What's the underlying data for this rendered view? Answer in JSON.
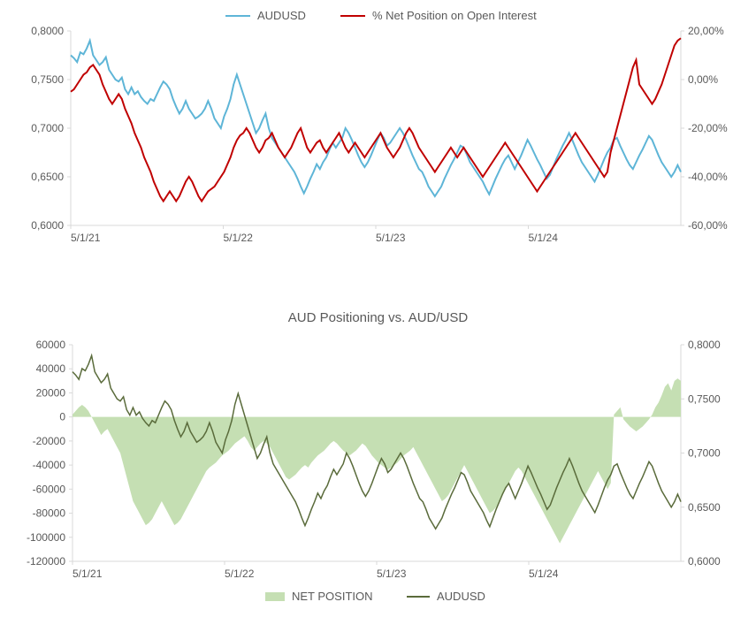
{
  "chart1": {
    "type": "line-dual-axis",
    "background_color": "#ffffff",
    "grid_color": "#d9d9d9",
    "axis_text_color": "#595959",
    "axis_fontsize": 12,
    "legend_fontsize": 13,
    "left_axis": {
      "min": 0.6,
      "max": 0.8,
      "step": 0.05,
      "ticks": [
        "0,6000",
        "0,6500",
        "0,7000",
        "0,7500",
        "0,8000"
      ]
    },
    "right_axis": {
      "min": -60,
      "max": 20,
      "step": 20,
      "ticks": [
        "-60,00%",
        "-40,00%",
        "-20,00%",
        "0,00%",
        "20,00%"
      ]
    },
    "x_axis": {
      "labels": [
        "5/1/21",
        "5/1/22",
        "5/1/23",
        "5/1/24"
      ]
    },
    "legend": [
      {
        "label": "AUDUSD",
        "color": "#5eb5d7",
        "marker": "line"
      },
      {
        "label": "% Net Position on Open Interest",
        "color": "#c00000",
        "marker": "line"
      }
    ],
    "series": [
      {
        "name": "AUDUSD",
        "axis": "left",
        "color": "#5eb5d7",
        "line_width": 2,
        "data": [
          0.775,
          0.772,
          0.768,
          0.778,
          0.776,
          0.782,
          0.79,
          0.775,
          0.77,
          0.765,
          0.768,
          0.773,
          0.76,
          0.755,
          0.75,
          0.748,
          0.752,
          0.74,
          0.735,
          0.742,
          0.735,
          0.738,
          0.732,
          0.728,
          0.725,
          0.73,
          0.728,
          0.735,
          0.742,
          0.748,
          0.745,
          0.74,
          0.73,
          0.722,
          0.715,
          0.72,
          0.728,
          0.72,
          0.715,
          0.71,
          0.712,
          0.715,
          0.72,
          0.728,
          0.72,
          0.71,
          0.705,
          0.7,
          0.712,
          0.72,
          0.73,
          0.745,
          0.755,
          0.745,
          0.735,
          0.725,
          0.715,
          0.705,
          0.695,
          0.7,
          0.708,
          0.715,
          0.7,
          0.69,
          0.685,
          0.68,
          0.675,
          0.67,
          0.665,
          0.66,
          0.655,
          0.648,
          0.64,
          0.633,
          0.64,
          0.648,
          0.655,
          0.663,
          0.658,
          0.665,
          0.67,
          0.678,
          0.685,
          0.68,
          0.685,
          0.69,
          0.7,
          0.695,
          0.688,
          0.68,
          0.672,
          0.665,
          0.66,
          0.665,
          0.672,
          0.68,
          0.688,
          0.695,
          0.69,
          0.682,
          0.685,
          0.69,
          0.695,
          0.7,
          0.695,
          0.688,
          0.68,
          0.672,
          0.665,
          0.658,
          0.655,
          0.648,
          0.64,
          0.635,
          0.63,
          0.635,
          0.64,
          0.648,
          0.655,
          0.662,
          0.668,
          0.675,
          0.682,
          0.68,
          0.673,
          0.665,
          0.66,
          0.655,
          0.65,
          0.645,
          0.638,
          0.632,
          0.64,
          0.648,
          0.655,
          0.662,
          0.668,
          0.672,
          0.665,
          0.658,
          0.665,
          0.672,
          0.68,
          0.688,
          0.682,
          0.675,
          0.668,
          0.662,
          0.655,
          0.648,
          0.652,
          0.66,
          0.668,
          0.675,
          0.682,
          0.688,
          0.695,
          0.688,
          0.68,
          0.672,
          0.665,
          0.66,
          0.655,
          0.65,
          0.645,
          0.652,
          0.66,
          0.668,
          0.675,
          0.68,
          0.688,
          0.69,
          0.682,
          0.675,
          0.668,
          0.662,
          0.658,
          0.665,
          0.672,
          0.678,
          0.685,
          0.692,
          0.688,
          0.68,
          0.672,
          0.665,
          0.66,
          0.655,
          0.65,
          0.655,
          0.662,
          0.655
        ]
      },
      {
        "name": "NetPosPct",
        "axis": "right",
        "color": "#c00000",
        "line_width": 2,
        "data": [
          -5,
          -4,
          -2,
          0,
          2,
          3,
          5,
          6,
          4,
          2,
          -2,
          -5,
          -8,
          -10,
          -8,
          -6,
          -8,
          -12,
          -15,
          -18,
          -22,
          -25,
          -28,
          -32,
          -35,
          -38,
          -42,
          -45,
          -48,
          -50,
          -48,
          -46,
          -48,
          -50,
          -48,
          -45,
          -42,
          -40,
          -42,
          -45,
          -48,
          -50,
          -48,
          -46,
          -45,
          -44,
          -42,
          -40,
          -38,
          -35,
          -32,
          -28,
          -25,
          -23,
          -22,
          -20,
          -22,
          -25,
          -28,
          -30,
          -28,
          -25,
          -24,
          -22,
          -25,
          -28,
          -30,
          -32,
          -30,
          -28,
          -25,
          -22,
          -20,
          -24,
          -28,
          -30,
          -28,
          -26,
          -25,
          -28,
          -30,
          -28,
          -26,
          -24,
          -22,
          -25,
          -28,
          -30,
          -28,
          -26,
          -28,
          -30,
          -32,
          -30,
          -28,
          -26,
          -24,
          -22,
          -25,
          -28,
          -30,
          -32,
          -30,
          -28,
          -25,
          -22,
          -20,
          -22,
          -25,
          -28,
          -30,
          -32,
          -34,
          -36,
          -38,
          -36,
          -34,
          -32,
          -30,
          -28,
          -30,
          -32,
          -30,
          -28,
          -30,
          -32,
          -34,
          -36,
          -38,
          -40,
          -38,
          -36,
          -34,
          -32,
          -30,
          -28,
          -26,
          -28,
          -30,
          -32,
          -34,
          -36,
          -38,
          -40,
          -42,
          -44,
          -46,
          -44,
          -42,
          -40,
          -38,
          -36,
          -34,
          -32,
          -30,
          -28,
          -26,
          -24,
          -22,
          -24,
          -26,
          -28,
          -30,
          -32,
          -34,
          -36,
          -38,
          -40,
          -38,
          -30,
          -25,
          -20,
          -15,
          -10,
          -5,
          0,
          5,
          8,
          -2,
          -4,
          -6,
          -8,
          -10,
          -8,
          -5,
          -2,
          2,
          6,
          10,
          14,
          16,
          17
        ]
      }
    ]
  },
  "chart2": {
    "type": "area-line-dual-axis",
    "title": "AUD Positioning vs. AUD/USD",
    "title_fontsize": 15,
    "background_color": "#ffffff",
    "axis_text_color": "#595959",
    "axis_fontsize": 12,
    "legend_fontsize": 13,
    "left_axis": {
      "min": -120000,
      "max": 60000,
      "step": 20000,
      "ticks": [
        "-120000",
        "-100000",
        "-80000",
        "-60000",
        "-40000",
        "-20000",
        "0",
        "20000",
        "40000",
        "60000"
      ]
    },
    "right_axis": {
      "min": 0.6,
      "max": 0.8,
      "step": 0.05,
      "ticks": [
        "0,6000",
        "0,6500",
        "0,7000",
        "0,7500",
        "0,8000"
      ]
    },
    "x_axis": {
      "labels": [
        "5/1/21",
        "5/1/22",
        "5/1/23",
        "5/1/24"
      ]
    },
    "legend": [
      {
        "label": "NET POSITION",
        "color": "#c5dfb3",
        "marker": "area"
      },
      {
        "label": "AUDUSD",
        "color": "#5a6b3b",
        "marker": "line"
      }
    ],
    "series": [
      {
        "name": "NET POSITION",
        "axis": "left",
        "color": "#c5dfb3",
        "type": "area",
        "fill_opacity": 1.0,
        "data": [
          2000,
          5000,
          8000,
          10000,
          8000,
          5000,
          0,
          -5000,
          -10000,
          -15000,
          -12000,
          -10000,
          -15000,
          -20000,
          -25000,
          -30000,
          -40000,
          -50000,
          -60000,
          -70000,
          -75000,
          -80000,
          -85000,
          -90000,
          -88000,
          -85000,
          -80000,
          -75000,
          -70000,
          -75000,
          -80000,
          -85000,
          -90000,
          -88000,
          -85000,
          -80000,
          -75000,
          -70000,
          -65000,
          -60000,
          -55000,
          -50000,
          -45000,
          -42000,
          -40000,
          -38000,
          -35000,
          -32000,
          -30000,
          -28000,
          -25000,
          -22000,
          -20000,
          -18000,
          -16000,
          -20000,
          -25000,
          -28000,
          -25000,
          -22000,
          -20000,
          -22000,
          -25000,
          -30000,
          -35000,
          -40000,
          -45000,
          -50000,
          -52000,
          -50000,
          -48000,
          -45000,
          -42000,
          -40000,
          -42000,
          -38000,
          -35000,
          -32000,
          -30000,
          -28000,
          -25000,
          -22000,
          -20000,
          -22000,
          -25000,
          -28000,
          -30000,
          -32000,
          -30000,
          -28000,
          -25000,
          -22000,
          -24000,
          -28000,
          -32000,
          -35000,
          -38000,
          -40000,
          -42000,
          -44000,
          -42000,
          -40000,
          -38000,
          -35000,
          -32000,
          -30000,
          -28000,
          -25000,
          -30000,
          -35000,
          -40000,
          -45000,
          -50000,
          -55000,
          -60000,
          -65000,
          -70000,
          -68000,
          -65000,
          -60000,
          -55000,
          -50000,
          -45000,
          -40000,
          -45000,
          -50000,
          -55000,
          -60000,
          -65000,
          -70000,
          -75000,
          -80000,
          -78000,
          -75000,
          -70000,
          -65000,
          -60000,
          -55000,
          -50000,
          -45000,
          -42000,
          -45000,
          -50000,
          -55000,
          -60000,
          -65000,
          -70000,
          -75000,
          -80000,
          -85000,
          -90000,
          -95000,
          -100000,
          -105000,
          -100000,
          -95000,
          -90000,
          -85000,
          -80000,
          -75000,
          -70000,
          -65000,
          -60000,
          -55000,
          -50000,
          -45000,
          -50000,
          -55000,
          -60000,
          -55000,
          2000,
          5000,
          8000,
          -2000,
          -5000,
          -8000,
          -10000,
          -12000,
          -10000,
          -8000,
          -5000,
          -2000,
          2000,
          8000,
          12000,
          18000,
          25000,
          28000,
          22000,
          30000,
          32000,
          30000
        ]
      },
      {
        "name": "AUDUSD",
        "axis": "right",
        "color": "#5a6b3b",
        "type": "line",
        "line_width": 1.5,
        "data": [
          0.775,
          0.772,
          0.768,
          0.778,
          0.776,
          0.782,
          0.79,
          0.775,
          0.77,
          0.765,
          0.768,
          0.773,
          0.76,
          0.755,
          0.75,
          0.748,
          0.752,
          0.74,
          0.735,
          0.742,
          0.735,
          0.738,
          0.732,
          0.728,
          0.725,
          0.73,
          0.728,
          0.735,
          0.742,
          0.748,
          0.745,
          0.74,
          0.73,
          0.722,
          0.715,
          0.72,
          0.728,
          0.72,
          0.715,
          0.71,
          0.712,
          0.715,
          0.72,
          0.728,
          0.72,
          0.71,
          0.705,
          0.7,
          0.712,
          0.72,
          0.73,
          0.745,
          0.755,
          0.745,
          0.735,
          0.725,
          0.715,
          0.705,
          0.695,
          0.7,
          0.708,
          0.715,
          0.7,
          0.69,
          0.685,
          0.68,
          0.675,
          0.67,
          0.665,
          0.66,
          0.655,
          0.648,
          0.64,
          0.633,
          0.64,
          0.648,
          0.655,
          0.663,
          0.658,
          0.665,
          0.67,
          0.678,
          0.685,
          0.68,
          0.685,
          0.69,
          0.7,
          0.695,
          0.688,
          0.68,
          0.672,
          0.665,
          0.66,
          0.665,
          0.672,
          0.68,
          0.688,
          0.695,
          0.69,
          0.682,
          0.685,
          0.69,
          0.695,
          0.7,
          0.695,
          0.688,
          0.68,
          0.672,
          0.665,
          0.658,
          0.655,
          0.648,
          0.64,
          0.635,
          0.63,
          0.635,
          0.64,
          0.648,
          0.655,
          0.662,
          0.668,
          0.675,
          0.682,
          0.68,
          0.673,
          0.665,
          0.66,
          0.655,
          0.65,
          0.645,
          0.638,
          0.632,
          0.64,
          0.648,
          0.655,
          0.662,
          0.668,
          0.672,
          0.665,
          0.658,
          0.665,
          0.672,
          0.68,
          0.688,
          0.682,
          0.675,
          0.668,
          0.662,
          0.655,
          0.648,
          0.652,
          0.66,
          0.668,
          0.675,
          0.682,
          0.688,
          0.695,
          0.688,
          0.68,
          0.672,
          0.665,
          0.66,
          0.655,
          0.65,
          0.645,
          0.652,
          0.66,
          0.668,
          0.675,
          0.68,
          0.688,
          0.69,
          0.682,
          0.675,
          0.668,
          0.662,
          0.658,
          0.665,
          0.672,
          0.678,
          0.685,
          0.692,
          0.688,
          0.68,
          0.672,
          0.665,
          0.66,
          0.655,
          0.65,
          0.655,
          0.662,
          0.655
        ]
      }
    ]
  }
}
